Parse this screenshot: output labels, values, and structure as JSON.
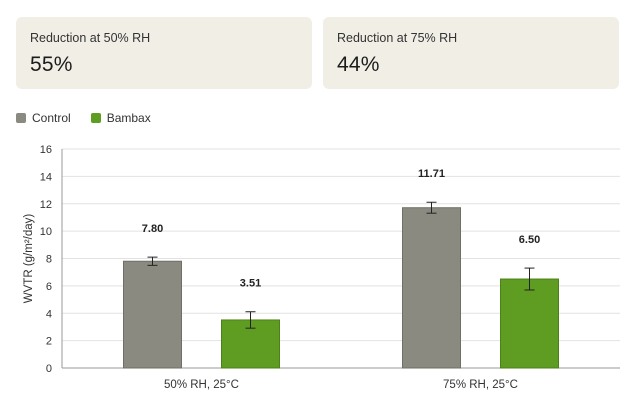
{
  "cards": [
    {
      "label": "Reduction at 50% RH",
      "value": "55%"
    },
    {
      "label": "Reduction at 75% RH",
      "value": "44%"
    }
  ],
  "colors": {
    "control": "#8a8a80",
    "bambax": "#5f9c22"
  },
  "chart_data": {
    "type": "bar",
    "title": "",
    "xlabel": "",
    "ylabel": "WVTR (g/m²/day)",
    "ylim": [
      0,
      16
    ],
    "yticks": [
      "0",
      "2",
      "4",
      "6",
      "8",
      "10",
      "12",
      "14",
      "16"
    ],
    "categories": [
      "50% RH, 25°C",
      "75% RH, 25°C"
    ],
    "grid": true,
    "legend": "top-left",
    "series": [
      {
        "name": "Control",
        "values": [
          7.8,
          11.71
        ],
        "labels": [
          "7.80",
          "11.71"
        ],
        "errors": [
          0.3,
          0.4
        ],
        "color": "#8a8a80"
      },
      {
        "name": "Bambax",
        "values": [
          3.51,
          6.5
        ],
        "labels": [
          "3.51",
          "6.50"
        ],
        "errors": [
          0.6,
          0.8
        ],
        "color": "#5f9c22"
      }
    ]
  }
}
